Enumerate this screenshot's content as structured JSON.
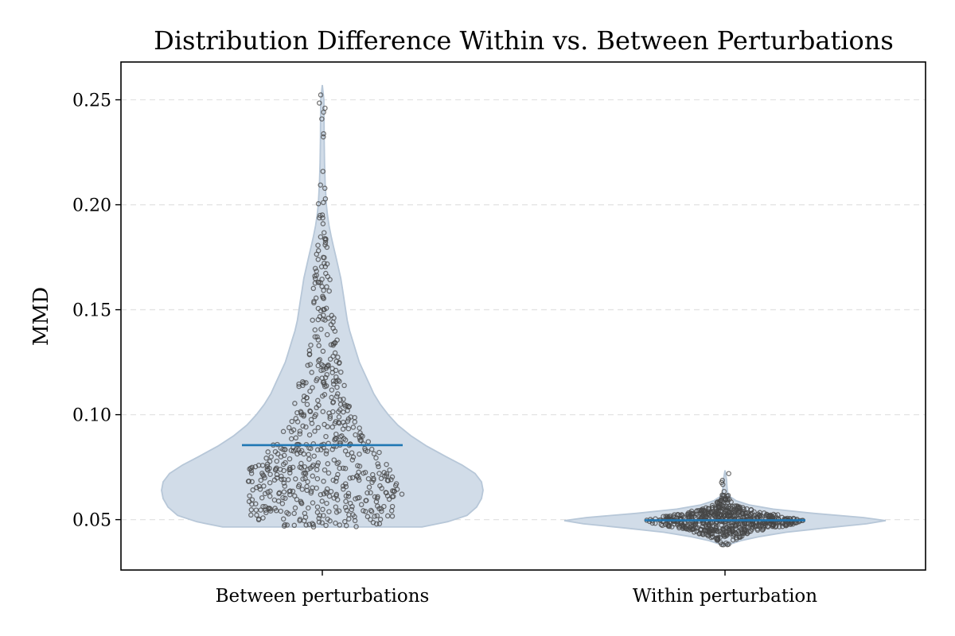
{
  "chart_data": {
    "type": "violin",
    "title": "Distribution Difference Within vs. Between Perturbations",
    "xlabel": "",
    "ylabel": "MMD",
    "categories": [
      "Between perturbations",
      "Within perturbation"
    ],
    "ylim": [
      0.026,
      0.268
    ],
    "yticks": [
      0.05,
      0.1,
      0.15,
      0.2,
      0.25
    ],
    "ytick_labels": [
      "0.05",
      "0.10",
      "0.15",
      "0.20",
      "0.25"
    ],
    "grid": "y-dashed",
    "violins": [
      {
        "category": "Between perturbations",
        "median": 0.0855,
        "min": 0.0465,
        "max": 0.257,
        "point_count": 600,
        "profile": [
          [
            0.0465,
            0.62
          ],
          [
            0.049,
            0.78
          ],
          [
            0.052,
            0.9
          ],
          [
            0.056,
            0.96
          ],
          [
            0.06,
            0.99
          ],
          [
            0.064,
            1.0
          ],
          [
            0.068,
            0.99
          ],
          [
            0.072,
            0.95
          ],
          [
            0.076,
            0.87
          ],
          [
            0.08,
            0.77
          ],
          [
            0.085,
            0.65
          ],
          [
            0.09,
            0.55
          ],
          [
            0.095,
            0.47
          ],
          [
            0.1,
            0.41
          ],
          [
            0.105,
            0.36
          ],
          [
            0.11,
            0.32
          ],
          [
            0.115,
            0.29
          ],
          [
            0.12,
            0.26
          ],
          [
            0.125,
            0.23
          ],
          [
            0.13,
            0.21
          ],
          [
            0.135,
            0.19
          ],
          [
            0.14,
            0.17
          ],
          [
            0.145,
            0.155
          ],
          [
            0.15,
            0.145
          ],
          [
            0.155,
            0.135
          ],
          [
            0.16,
            0.125
          ],
          [
            0.165,
            0.115
          ],
          [
            0.17,
            0.1
          ],
          [
            0.175,
            0.085
          ],
          [
            0.18,
            0.07
          ],
          [
            0.185,
            0.055
          ],
          [
            0.19,
            0.042
          ],
          [
            0.195,
            0.032
          ],
          [
            0.2,
            0.025
          ],
          [
            0.21,
            0.018
          ],
          [
            0.22,
            0.014
          ],
          [
            0.23,
            0.012
          ],
          [
            0.24,
            0.011
          ],
          [
            0.25,
            0.01
          ],
          [
            0.257,
            0.0
          ]
        ]
      },
      {
        "category": "Within perturbation",
        "median": 0.0497,
        "min": 0.0375,
        "max": 0.0735,
        "point_count": 620,
        "profile": [
          [
            0.0375,
            0.0
          ],
          [
            0.04,
            0.1
          ],
          [
            0.042,
            0.22
          ],
          [
            0.044,
            0.38
          ],
          [
            0.046,
            0.62
          ],
          [
            0.048,
            0.88
          ],
          [
            0.0495,
            1.0
          ],
          [
            0.051,
            0.86
          ],
          [
            0.053,
            0.55
          ],
          [
            0.055,
            0.3
          ],
          [
            0.057,
            0.15
          ],
          [
            0.059,
            0.07
          ],
          [
            0.061,
            0.03
          ],
          [
            0.063,
            0.016
          ],
          [
            0.066,
            0.012
          ],
          [
            0.069,
            0.01
          ],
          [
            0.0735,
            0.0
          ]
        ]
      }
    ],
    "colors": {
      "violin_fill": "#d1dce8",
      "violin_edge": "#b7c7d8",
      "median_line": "#1f77b4",
      "point_edge": "#454545",
      "grid": "#e3e3e3"
    }
  }
}
